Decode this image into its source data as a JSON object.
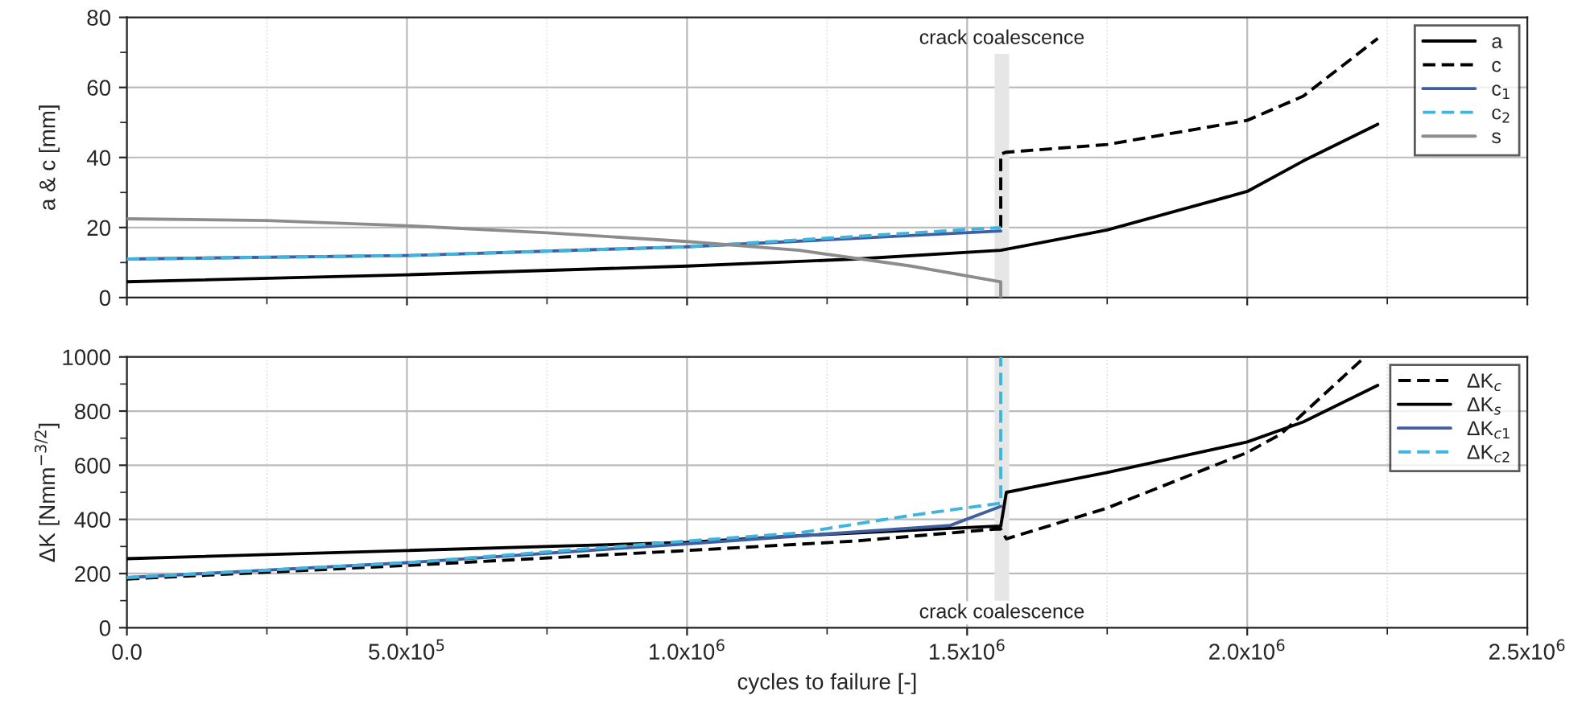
{
  "chart_data": [
    {
      "type": "line",
      "ylabel": "a & c [mm]",
      "xlim": [
        0,
        2500000
      ],
      "ylim": [
        0,
        80
      ],
      "xticks": [
        0,
        500000,
        1000000,
        1500000,
        2000000,
        2500000
      ],
      "yticks": [
        0,
        20,
        40,
        60,
        80
      ],
      "tick_labels": "y",
      "grid": true,
      "legend": "top right",
      "bands": [
        {
          "axis": "x",
          "from": 1549000,
          "to": 1575000,
          "label": "crack coalescence",
          "color": "#e6e6e6"
        }
      ],
      "series": [
        {
          "name": "a",
          "color": "#000000",
          "line_style": "solid",
          "x": [
            0,
            500000,
            1000000,
            1300000,
            1560000,
            1600000,
            1750000,
            2000000,
            2100000,
            2233000
          ],
          "values": [
            4.5,
            6.5,
            9,
            11,
            13.5,
            14.7,
            19.3,
            30.3,
            39,
            49.5
          ]
        },
        {
          "name": "c",
          "color": "#000000",
          "line_style": "dashed",
          "x": [
            1560000,
            1560000,
            1570000,
            1750000,
            2000000,
            2100000,
            2233000
          ],
          "values": [
            20,
            41,
            41.5,
            43.7,
            50.6,
            57.5,
            74
          ]
        },
        {
          "name": "c$_{1}$",
          "color": "#3f5fa0",
          "line_style": "solid",
          "x": [
            0,
            500000,
            1000000,
            1560000
          ],
          "values": [
            11,
            12,
            14.5,
            19
          ]
        },
        {
          "name": "c$_{2}$",
          "color": "#3fb4dc",
          "line_style": "dashed",
          "x": [
            0,
            500000,
            1000000,
            1560000
          ],
          "values": [
            11,
            12,
            14.5,
            20
          ]
        },
        {
          "name": "s",
          "color": "#8c8c8c",
          "line_style": "solid",
          "x": [
            0,
            250000,
            500000,
            750000,
            1000000,
            1200000,
            1400000,
            1560000,
            1560000
          ],
          "values": [
            22.5,
            22,
            20.5,
            18.5,
            16,
            13.5,
            9,
            4.5,
            0
          ]
        }
      ]
    },
    {
      "type": "line",
      "xlabel": "cycles to failure [-]",
      "ylabel": "ΔK [Nmm$^{−3/2}$]",
      "xlim": [
        0,
        2500000
      ],
      "ylim": [
        0,
        1000
      ],
      "xticks": [
        {
          "value": 0,
          "label": "0.0"
        },
        {
          "value": 500000,
          "label": "5.0x10$^{5}$"
        },
        {
          "value": 1000000,
          "label": "1.0x10$^{6}$"
        },
        {
          "value": 1500000,
          "label": "1.5x10$^{6}$"
        },
        {
          "value": 2000000,
          "label": "2.0x10$^{6}$"
        },
        {
          "value": 2500000,
          "label": "2.5x10$^{6}$"
        }
      ],
      "yticks": [
        0,
        200,
        400,
        600,
        800,
        1000
      ],
      "grid": true,
      "legend": "top right",
      "bands": [
        {
          "axis": "x",
          "from": 1549000,
          "to": 1575000,
          "label": "crack coalescence",
          "color": "#e6e6e6"
        }
      ],
      "series": [
        {
          "name": "ΔK$_{c}$",
          "color": "#000000",
          "line_style": "dashed",
          "x": [
            0,
            500000,
            1000000,
            1300000,
            1550000,
            1560000,
            1570000,
            1750000,
            2000000,
            2060000,
            2210000
          ],
          "values": [
            180,
            230,
            285,
            320,
            364,
            364,
            328,
            442,
            647,
            715,
            1000
          ]
        },
        {
          "name": "ΔK$_{s}$",
          "color": "#000000",
          "line_style": "solid",
          "x": [
            0,
            500000,
            1000000,
            1200000,
            1550000,
            1560000,
            1570000,
            1750000,
            2000000,
            2100000,
            2233000
          ],
          "values": [
            255,
            285,
            315,
            340,
            375,
            375,
            500,
            573,
            686,
            760,
            895
          ]
        },
        {
          "name": "ΔK$_{c1}$",
          "color": "#3f5fa0",
          "line_style": "solid",
          "x": [
            0,
            500000,
            1000000,
            1470000,
            1560000
          ],
          "values": [
            185,
            240,
            310,
            378,
            448
          ]
        },
        {
          "name": "ΔK$_{c2}$",
          "color": "#3fb4dc",
          "line_style": "dashed",
          "x": [
            0,
            500000,
            1000000,
            1200000,
            1400000,
            1560000,
            1560000
          ],
          "values": [
            185,
            240,
            320,
            350,
            415,
            460,
            1000
          ]
        }
      ]
    }
  ]
}
